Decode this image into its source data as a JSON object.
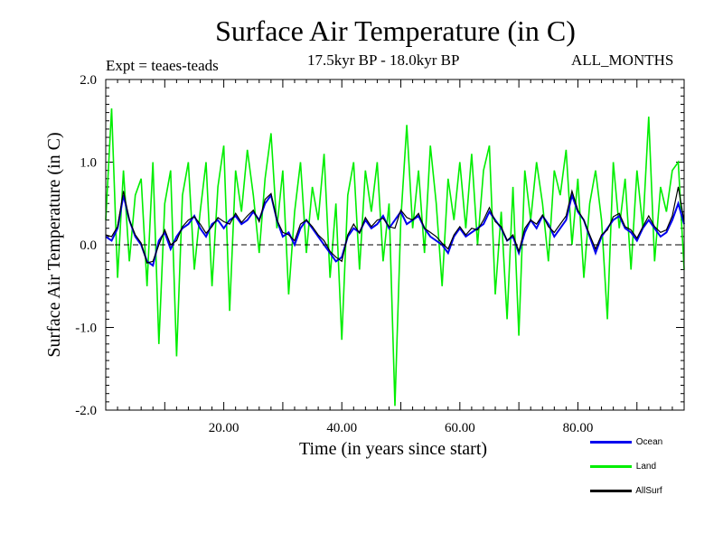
{
  "page": {
    "title": "Surface Air Temperature (in C)",
    "experiment": "Expt = teaes-teads",
    "period": "17.5kyr BP - 18.0kyr BP",
    "months": "ALL_MONTHS"
  },
  "chart_data": {
    "type": "line",
    "title": "Surface Air Temperature (in C)",
    "xlabel": "Time (in years since start)",
    "ylabel": "Surface Air Temperature (in C)",
    "xlim": [
      0,
      98
    ],
    "ylim": [
      -2.0,
      2.0
    ],
    "x_ticks": [
      20,
      40,
      60,
      80
    ],
    "x_tick_labels": [
      "20.00",
      "40.00",
      "60.00",
      "80.00"
    ],
    "y_ticks": [
      -2.0,
      -1.0,
      0.0,
      1.0,
      2.0
    ],
    "y_tick_labels": [
      "-2.0",
      "-1.0",
      "0.0",
      "1.0",
      "2.0"
    ],
    "reference_line": 0.0,
    "series": [
      {
        "name": "Land",
        "color": "#00ee00",
        "x": [
          0,
          1,
          2,
          3,
          4,
          5,
          6,
          7,
          8,
          9,
          10,
          11,
          12,
          13,
          14,
          15,
          16,
          17,
          18,
          19,
          20,
          21,
          22,
          23,
          24,
          25,
          26,
          27,
          28,
          29,
          30,
          31,
          32,
          33,
          34,
          35,
          36,
          37,
          38,
          39,
          40,
          41,
          42,
          43,
          44,
          45,
          46,
          47,
          48,
          49,
          50,
          51,
          52,
          53,
          54,
          55,
          56,
          57,
          58,
          59,
          60,
          61,
          62,
          63,
          64,
          65,
          66,
          67,
          68,
          69,
          70,
          71,
          72,
          73,
          74,
          75,
          76,
          77,
          78,
          79,
          80,
          81,
          82,
          83,
          84,
          85,
          86,
          87,
          88,
          89,
          90,
          91,
          92,
          93,
          94,
          95,
          96,
          97,
          98
        ],
        "values": [
          0.3,
          1.65,
          -0.4,
          0.9,
          -0.2,
          0.6,
          0.8,
          -0.5,
          1.0,
          -1.2,
          0.5,
          0.9,
          -1.35,
          0.6,
          1.0,
          -0.3,
          0.4,
          1.0,
          -0.5,
          0.7,
          1.2,
          -0.8,
          0.9,
          0.4,
          1.15,
          0.6,
          -0.1,
          0.8,
          1.35,
          0.2,
          0.9,
          -0.6,
          0.4,
          1.0,
          -0.1,
          0.7,
          0.3,
          1.1,
          -0.4,
          0.5,
          -1.15,
          0.6,
          1.0,
          -0.3,
          0.9,
          0.4,
          1.0,
          -0.2,
          0.5,
          -1.95,
          0.3,
          1.45,
          0.2,
          0.9,
          -0.1,
          1.2,
          0.5,
          -0.5,
          0.8,
          0.3,
          1.0,
          0.2,
          1.1,
          0.0,
          0.9,
          1.2,
          -0.6,
          0.4,
          -0.9,
          0.7,
          -1.1,
          0.9,
          0.3,
          1.0,
          0.5,
          -0.2,
          0.9,
          0.6,
          1.15,
          0.0,
          0.8,
          -0.4,
          0.5,
          0.9,
          0.3,
          -0.9,
          1.0,
          0.2,
          0.8,
          -0.3,
          0.9,
          0.2,
          1.55,
          -0.2,
          0.7,
          0.4,
          0.9,
          1.0,
          -0.3
        ]
      },
      {
        "name": "Ocean",
        "color": "#0000ee",
        "x": [
          0,
          1,
          2,
          3,
          4,
          5,
          6,
          7,
          8,
          9,
          10,
          11,
          12,
          13,
          14,
          15,
          16,
          17,
          18,
          19,
          20,
          21,
          22,
          23,
          24,
          25,
          26,
          27,
          28,
          29,
          30,
          31,
          32,
          33,
          34,
          35,
          36,
          37,
          38,
          39,
          40,
          41,
          42,
          43,
          44,
          45,
          46,
          47,
          48,
          49,
          50,
          51,
          52,
          53,
          54,
          55,
          56,
          57,
          58,
          59,
          60,
          61,
          62,
          63,
          64,
          65,
          66,
          67,
          68,
          69,
          70,
          71,
          72,
          73,
          74,
          75,
          76,
          77,
          78,
          79,
          80,
          81,
          82,
          83,
          84,
          85,
          86,
          87,
          88,
          89,
          90,
          91,
          92,
          93,
          94,
          95,
          96,
          97,
          98
        ],
        "values": [
          0.1,
          0.05,
          0.2,
          0.6,
          0.3,
          0.1,
          0.0,
          -0.2,
          -0.25,
          0.05,
          0.15,
          -0.05,
          0.1,
          0.2,
          0.25,
          0.35,
          0.2,
          0.1,
          0.25,
          0.3,
          0.2,
          0.3,
          0.35,
          0.25,
          0.3,
          0.4,
          0.3,
          0.5,
          0.6,
          0.3,
          0.1,
          0.15,
          0.0,
          0.2,
          0.3,
          0.2,
          0.1,
          0.0,
          -0.1,
          -0.2,
          -0.15,
          0.1,
          0.2,
          0.15,
          0.3,
          0.2,
          0.25,
          0.35,
          0.2,
          0.3,
          0.4,
          0.25,
          0.3,
          0.35,
          0.2,
          0.1,
          0.05,
          0.0,
          -0.1,
          0.1,
          0.2,
          0.1,
          0.15,
          0.2,
          0.25,
          0.4,
          0.3,
          0.2,
          0.05,
          0.1,
          -0.1,
          0.15,
          0.3,
          0.2,
          0.35,
          0.25,
          0.1,
          0.2,
          0.3,
          0.6,
          0.4,
          0.3,
          0.1,
          -0.1,
          0.1,
          0.2,
          0.3,
          0.35,
          0.2,
          0.15,
          0.05,
          0.2,
          0.3,
          0.2,
          0.1,
          0.15,
          0.3,
          0.5,
          0.25
        ]
      },
      {
        "name": "AllSurf",
        "color": "#000000",
        "x": [
          0,
          1,
          2,
          3,
          4,
          5,
          6,
          7,
          8,
          9,
          10,
          11,
          12,
          13,
          14,
          15,
          16,
          17,
          18,
          19,
          20,
          21,
          22,
          23,
          24,
          25,
          26,
          27,
          28,
          29,
          30,
          31,
          32,
          33,
          34,
          35,
          36,
          37,
          38,
          39,
          40,
          41,
          42,
          43,
          44,
          45,
          46,
          47,
          48,
          49,
          50,
          51,
          52,
          53,
          54,
          55,
          56,
          57,
          58,
          59,
          60,
          61,
          62,
          63,
          64,
          65,
          66,
          67,
          68,
          69,
          70,
          71,
          72,
          73,
          74,
          75,
          76,
          77,
          78,
          79,
          80,
          81,
          82,
          83,
          84,
          85,
          86,
          87,
          88,
          89,
          90,
          91,
          92,
          93,
          94,
          95,
          96,
          97,
          98
        ],
        "values": [
          0.12,
          0.1,
          0.22,
          0.65,
          0.3,
          0.12,
          0.02,
          -0.22,
          -0.2,
          0.0,
          0.18,
          0.0,
          0.05,
          0.22,
          0.3,
          0.34,
          0.25,
          0.14,
          0.22,
          0.33,
          0.28,
          0.25,
          0.38,
          0.27,
          0.35,
          0.42,
          0.28,
          0.55,
          0.62,
          0.3,
          0.15,
          0.12,
          0.05,
          0.25,
          0.3,
          0.22,
          0.12,
          0.05,
          -0.08,
          -0.15,
          -0.2,
          0.12,
          0.25,
          0.14,
          0.33,
          0.22,
          0.3,
          0.32,
          0.22,
          0.2,
          0.42,
          0.33,
          0.3,
          0.38,
          0.2,
          0.15,
          0.1,
          0.02,
          -0.05,
          0.12,
          0.22,
          0.12,
          0.2,
          0.18,
          0.3,
          0.45,
          0.28,
          0.22,
          0.05,
          0.12,
          -0.08,
          0.2,
          0.3,
          0.25,
          0.36,
          0.22,
          0.15,
          0.25,
          0.35,
          0.65,
          0.42,
          0.3,
          0.12,
          -0.05,
          0.12,
          0.18,
          0.34,
          0.38,
          0.22,
          0.18,
          0.08,
          0.22,
          0.35,
          0.22,
          0.15,
          0.18,
          0.35,
          0.7,
          0.28
        ]
      }
    ],
    "legend": [
      {
        "name": "Ocean",
        "color": "#0000ee"
      },
      {
        "name": "Land",
        "color": "#00ee00"
      },
      {
        "name": "AllSurf",
        "color": "#000000"
      }
    ]
  }
}
